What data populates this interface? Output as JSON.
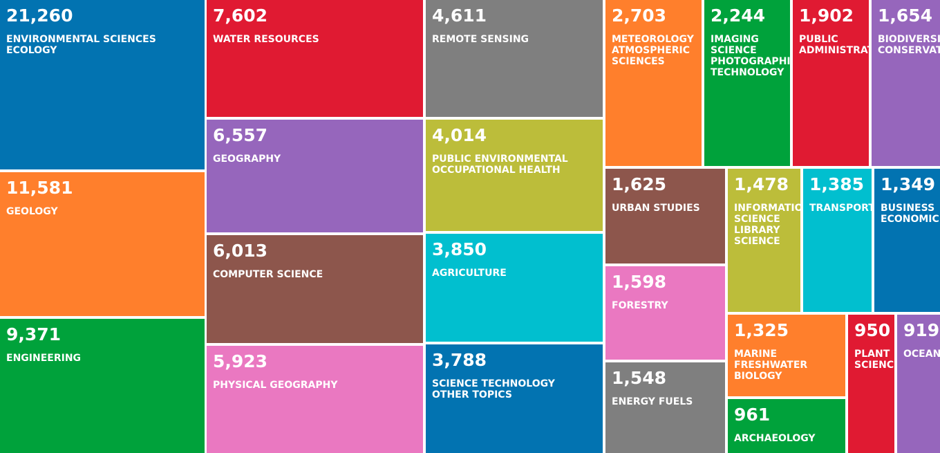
{
  "chart_data": {
    "type": "treemap",
    "title": "",
    "items": [
      {
        "value": "21,260",
        "label": "ENVIRONMENTAL SCIENCES\nECOLOGY",
        "color": "#0273b1"
      },
      {
        "value": "11,581",
        "label": "GEOLOGY",
        "color": "#ff7f2c"
      },
      {
        "value": "9,371",
        "label": "ENGINEERING",
        "color": "#00a23b"
      },
      {
        "value": "7,602",
        "label": "WATER RESOURCES",
        "color": "#e01a32"
      },
      {
        "value": "6,557",
        "label": "GEOGRAPHY",
        "color": "#9666bc"
      },
      {
        "value": "6,013",
        "label": "COMPUTER SCIENCE",
        "color": "#8d564c"
      },
      {
        "value": "5,923",
        "label": "PHYSICAL GEOGRAPHY",
        "color": "#ea78c1"
      },
      {
        "value": "4,611",
        "label": "REMOTE SENSING",
        "color": "#7f7f7f"
      },
      {
        "value": "4,014",
        "label": "PUBLIC ENVIRONMENTAL\nOCCUPATIONAL HEALTH",
        "color": "#bcbd3a"
      },
      {
        "value": "3,850",
        "label": "AGRICULTURE",
        "color": "#01bfcf"
      },
      {
        "value": "3,788",
        "label": "SCIENCE TECHNOLOGY\nOTHER TOPICS",
        "color": "#0273b1"
      },
      {
        "value": "2,703",
        "label": "METEOROLOGY\nATMOSPHERIC\nSCIENCES",
        "color": "#ff7f2c"
      },
      {
        "value": "2,244",
        "label": "IMAGING\nSCIENCE\nPHOTOGRAPHIC\nTECHNOLOGY",
        "color": "#00a23b"
      },
      {
        "value": "1,902",
        "label": "PUBLIC\nADMINISTRATION",
        "color": "#e01a32"
      },
      {
        "value": "1,654",
        "label": "BIODIVERSITY\nCONSERVATION",
        "color": "#9666bc"
      },
      {
        "value": "1,625",
        "label": "URBAN STUDIES",
        "color": "#8d564c"
      },
      {
        "value": "1,598",
        "label": "FORESTRY",
        "color": "#ea78c1"
      },
      {
        "value": "1,548",
        "label": "ENERGY FUELS",
        "color": "#7f7f7f"
      },
      {
        "value": "1,478",
        "label": "INFORMATION\nSCIENCE\nLIBRARY\nSCIENCE",
        "color": "#bcbd3a"
      },
      {
        "value": "1,385",
        "label": "TRANSPORTATION",
        "color": "#01bfcf"
      },
      {
        "value": "1,349",
        "label": "BUSINESS\nECONOMICS",
        "color": "#0273b1"
      },
      {
        "value": "1,325",
        "label": "MARINE\nFRESHWATER\nBIOLOGY",
        "color": "#ff7f2c"
      },
      {
        "value": "961",
        "label": "ARCHAEOLOGY",
        "color": "#00a23b"
      },
      {
        "value": "950",
        "label": "PLANT\nSCIENCES",
        "color": "#e01a32"
      },
      {
        "value": "919",
        "label": "OCEANOGRAPHY",
        "color": "#9666bc"
      }
    ]
  }
}
